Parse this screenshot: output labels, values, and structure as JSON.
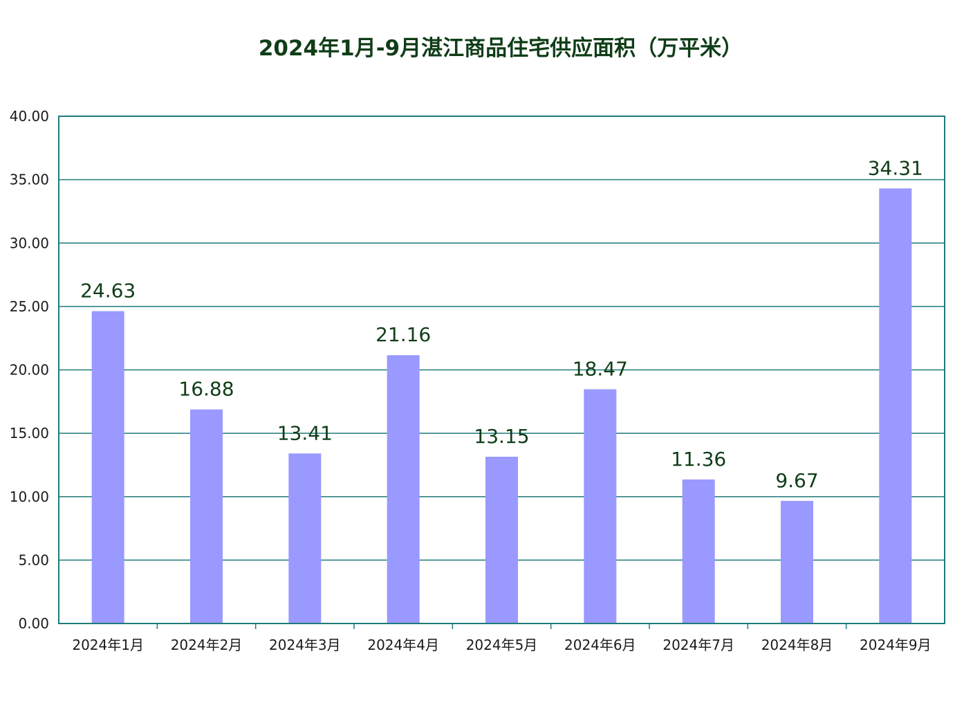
{
  "chart_data": {
    "type": "bar",
    "title": "2024年1月-9月湛江商品住宅供应面积（万平米）",
    "categories": [
      "2024年1月",
      "2024年2月",
      "2024年3月",
      "2024年4月",
      "2024年5月",
      "2024年6月",
      "2024年7月",
      "2024年8月",
      "2024年9月"
    ],
    "values": [
      24.63,
      16.88,
      13.41,
      21.16,
      13.15,
      18.47,
      11.36,
      9.67,
      34.31
    ],
    "value_labels": [
      "24.63",
      "16.88",
      "13.41",
      "21.16",
      "13.15",
      "18.47",
      "11.36",
      "9.67",
      "34.31"
    ],
    "y_ticks": [
      "0.00",
      "5.00",
      "10.00",
      "15.00",
      "20.00",
      "25.00",
      "30.00",
      "35.00",
      "40.00"
    ],
    "ylim": [
      0,
      40
    ],
    "grid": true,
    "legend": "none",
    "colors": {
      "bar": "#9999ff",
      "axis": "#1f7a7a",
      "grid": "#1f7a7a",
      "title": "#0f3d17"
    }
  }
}
